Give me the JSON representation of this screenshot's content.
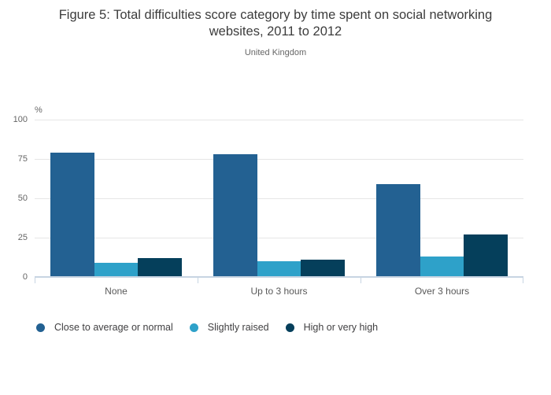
{
  "chart_data": {
    "type": "bar",
    "title": "Figure 5: Total difficulties score category by time spent on social networking websites, 2011 to 2012",
    "subtitle": "United Kingdom",
    "y_unit": "%",
    "ylim": [
      0,
      100
    ],
    "yticks": [
      0,
      25,
      50,
      75,
      100
    ],
    "grid": true,
    "legend_position": "bottom-left",
    "grid_color": "#e6e6e6",
    "axis_color": "#c7d4e2",
    "categories": [
      "None",
      "Up to 3 hours",
      "Over 3 hours"
    ],
    "series": [
      {
        "name": "Close to average or normal",
        "color": "#236192",
        "values": [
          79,
          78,
          59
        ]
      },
      {
        "name": "Slightly raised",
        "color": "#2ea1c9",
        "values": [
          9,
          10,
          13
        ]
      },
      {
        "name": "High or very high",
        "color": "#053f5b",
        "values": [
          12,
          11,
          27
        ]
      }
    ]
  }
}
